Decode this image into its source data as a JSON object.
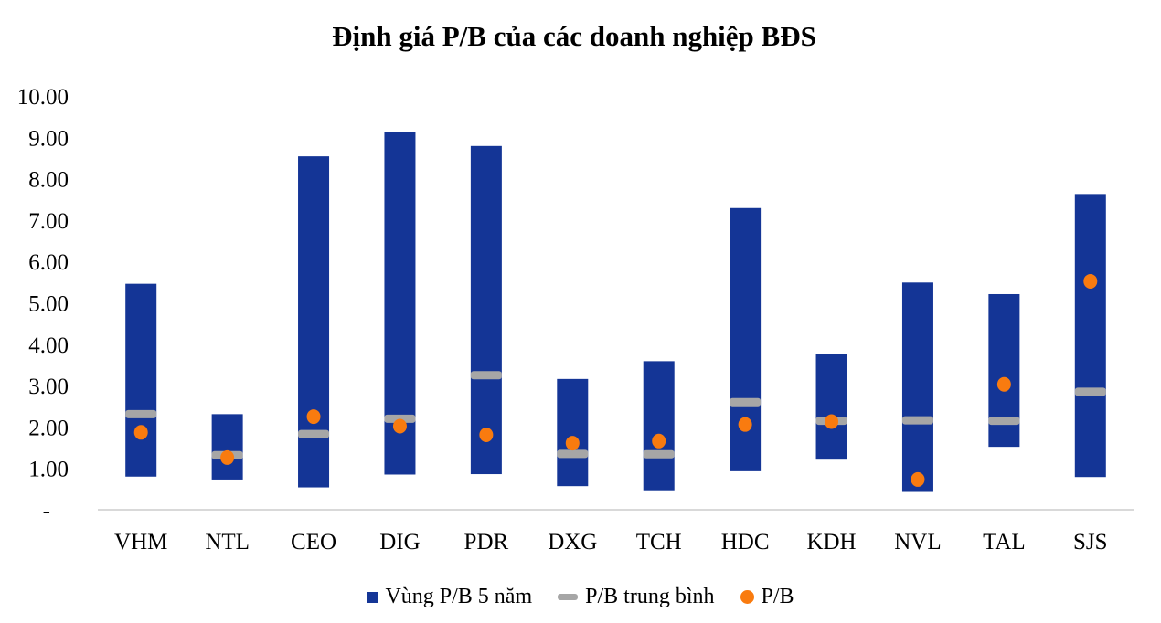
{
  "chart_data": {
    "type": "bar",
    "subtype": "floating-range-with-markers",
    "title": "Định giá P/B của các doanh nghiệp BĐS",
    "xlabel": "",
    "ylabel": "",
    "ylim": [
      0,
      10
    ],
    "yticks": [
      "-",
      "1.00",
      "2.00",
      "3.00",
      "4.00",
      "5.00",
      "6.00",
      "7.00",
      "8.00",
      "9.00",
      "10.00"
    ],
    "grid": false,
    "legend_position": "bottom",
    "categories": [
      "VHM",
      "NTL",
      "CEO",
      "DIG",
      "PDR",
      "DXG",
      "TCH",
      "HDC",
      "KDH",
      "NVL",
      "TAL",
      "SJS"
    ],
    "series": [
      {
        "name": "Vùng P/B 5 năm",
        "kind": "range",
        "color": "#143596",
        "low": [
          0.8,
          0.73,
          0.54,
          0.85,
          0.86,
          0.57,
          0.47,
          0.93,
          1.21,
          0.43,
          1.52,
          0.79
        ],
        "high": [
          5.46,
          2.31,
          8.54,
          9.13,
          8.79,
          3.16,
          3.59,
          7.29,
          3.76,
          5.49,
          5.21,
          7.63
        ]
      },
      {
        "name": "P/B trung bình",
        "kind": "dash",
        "color": "#a6a6a6",
        "values": [
          2.31,
          1.32,
          1.83,
          2.2,
          3.25,
          1.35,
          1.34,
          2.6,
          2.15,
          2.16,
          2.15,
          2.85
        ]
      },
      {
        "name": "P/B",
        "kind": "dot",
        "color": "#f97b0f",
        "values": [
          1.87,
          1.26,
          2.25,
          2.02,
          1.81,
          1.61,
          1.66,
          2.06,
          2.13,
          0.73,
          3.03,
          5.52
        ]
      }
    ]
  }
}
